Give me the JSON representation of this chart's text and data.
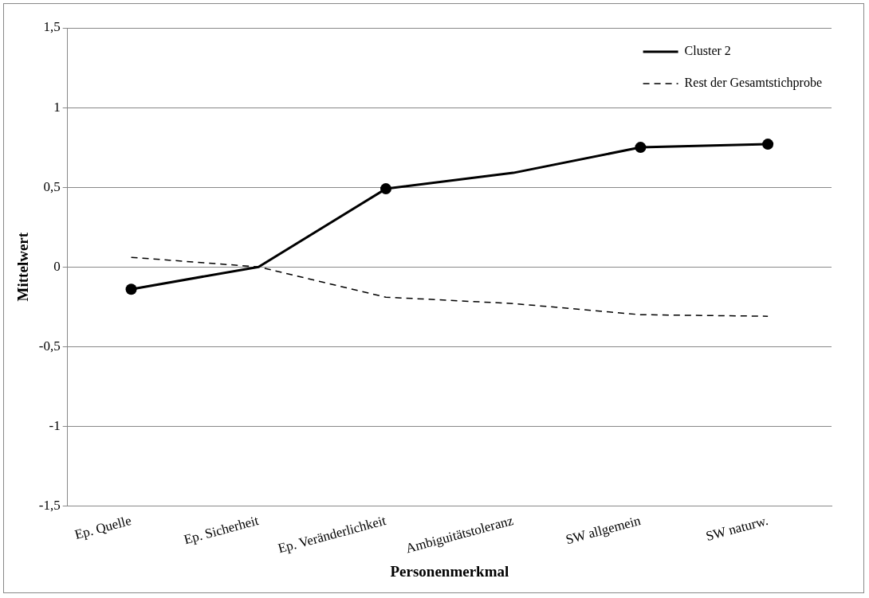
{
  "chart_data": {
    "type": "line",
    "xlabel": "Personenmerkmal",
    "ylabel": "Mittelwert",
    "categories": [
      "Ep. Quelle",
      "Ep. Sicherheit",
      "Ep. Veränderlichkeit",
      "Ambiguitätstoleranz",
      "SW allgemein",
      "SW naturw."
    ],
    "series": [
      {
        "name": "Cluster 2",
        "color": "#000000",
        "line_style": "solid",
        "values": [
          -0.14,
          0,
          0.49,
          0.59,
          0.75,
          0.77
        ]
      },
      {
        "name": "Rest der Gesamtstichprobe",
        "color": "#000000",
        "line_style": "dashed",
        "values": [
          0.06,
          0,
          -0.19,
          -0.23,
          -0.3,
          -0.31
        ]
      },
      {
        "type": "scatter",
        "color": "#000000",
        "marker": "circle",
        "values": [
          -0.14,
          null,
          0.49,
          null,
          0.75,
          0.77
        ]
      }
    ],
    "ylim": [
      -1.5,
      1.5
    ],
    "yticks": [
      {
        "value": -1.5,
        "label": "-1,5"
      },
      {
        "value": -1,
        "label": "-1"
      },
      {
        "value": -0.5,
        "label": "-0,5"
      },
      0,
      {
        "value": 0.5,
        "label": "0,5"
      },
      1,
      {
        "value": 1.5,
        "label": "1,5"
      }
    ],
    "grid": "y",
    "legend": "top right",
    "marker": "none"
  }
}
